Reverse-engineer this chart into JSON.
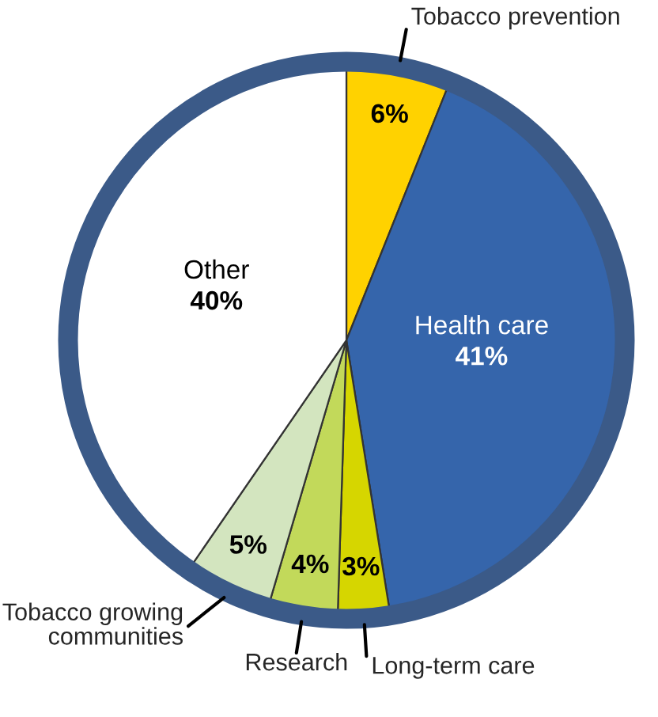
{
  "chart_data": {
    "type": "pie",
    "categories": [
      "Tobacco prevention",
      "Health care",
      "Long-term care",
      "Research",
      "Tobacco growing\ncommunities",
      "Other"
    ],
    "values": [
      6,
      41,
      3,
      4,
      5,
      40
    ],
    "value_labels": [
      "6%",
      "41%",
      "3%",
      "4%",
      "5%",
      "40%"
    ],
    "colors": [
      "#ffd200",
      "#3565ab",
      "#d6d600",
      "#c2d95a",
      "#d3e5bf",
      "#ffffff"
    ],
    "legend": false
  }
}
